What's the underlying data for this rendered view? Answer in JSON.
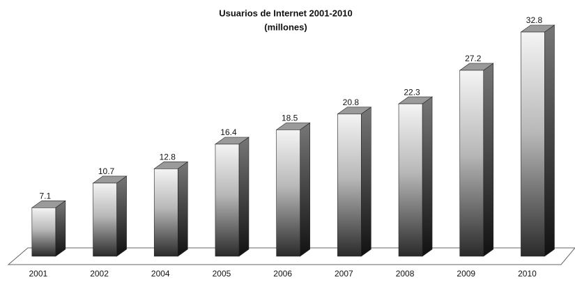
{
  "chart_data": {
    "type": "bar3d",
    "title": "Usuarios  de Internet 2001-2010",
    "subtitle": "(millones)",
    "categories": [
      "2001",
      "2002",
      "2004",
      "2005",
      "2006",
      "2007",
      "2008",
      "2009",
      "2010"
    ],
    "values": [
      7.1,
      10.7,
      12.8,
      16.4,
      18.5,
      20.8,
      22.3,
      27.2,
      32.8
    ]
  }
}
